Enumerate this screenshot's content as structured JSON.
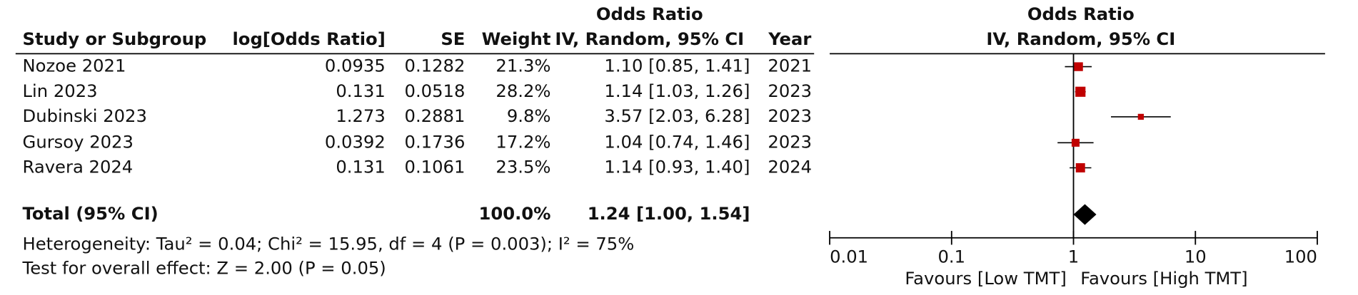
{
  "chart_data": {
    "type": "forest",
    "headers": {
      "study": "Study or Subgroup",
      "log_or": "log[Odds Ratio]",
      "se": "SE",
      "weight": "Weight",
      "or_title": "Odds Ratio",
      "or_method": "IV, Random, 95% CI",
      "year": "Year",
      "plot_title": "Odds Ratio",
      "plot_method": "IV, Random, 95% CI"
    },
    "studies": [
      "Nozoe 2021",
      "Lin 2023",
      "Dubinski 2023",
      "Gursoy 2023",
      "Ravera 2024"
    ],
    "log_or": [
      0.0935,
      0.131,
      1.273,
      0.0392,
      0.131
    ],
    "se": [
      0.1282,
      0.0518,
      0.2881,
      0.1736,
      0.1061
    ],
    "weight": {
      "values": [
        21.3,
        28.2,
        9.8,
        17.2,
        23.5
      ],
      "value_labels": [
        "21.3%",
        "28.2%",
        "9.8%",
        "17.2%",
        "23.5%"
      ]
    },
    "odds_ratio": {
      "values": [
        1.1,
        1.14,
        3.57,
        1.04,
        1.14
      ],
      "ci_low": [
        0.85,
        1.03,
        2.03,
        0.74,
        0.93
      ],
      "ci_high": [
        1.41,
        1.26,
        6.28,
        1.46,
        1.4
      ],
      "value_labels": [
        "1.10 [0.85, 1.41]",
        "1.14 [1.03, 1.26]",
        "3.57 [2.03, 6.28]",
        "1.04 [0.74, 1.46]",
        "1.14 [0.93, 1.40]"
      ]
    },
    "years": [
      "2021",
      "2023",
      "2023",
      "2023",
      "2024"
    ],
    "total": {
      "label": "Total (95% CI)",
      "weight": 100.0,
      "weight_label": "100.0%",
      "or": 1.24,
      "ci_low": 1.0,
      "ci_high": 1.54,
      "or_label": "1.24 [1.00, 1.54]"
    },
    "heterogeneity": "Heterogeneity: Tau² = 0.04; Chi² = 15.95, df = 4 (P = 0.003); I² = 75%",
    "overall_effect": "Test for overall effect: Z = 2.00 (P = 0.05)",
    "log_x": true,
    "xlim": [
      0.01,
      100
    ],
    "xticks": [
      0.01,
      0.1,
      1,
      10,
      100
    ],
    "xlabel_left": "Favours [Low TMT]",
    "xlabel_right": "Favours [High TMT]",
    "marker_color": "#c00000"
  }
}
